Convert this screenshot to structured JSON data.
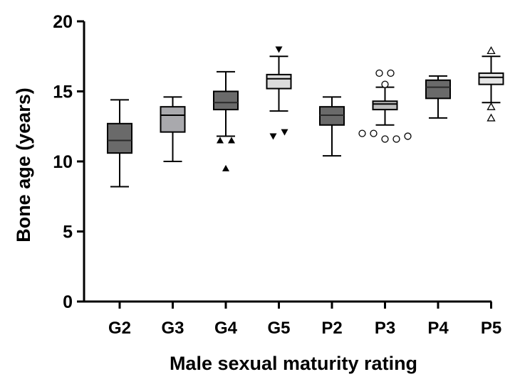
{
  "chart_data": {
    "type": "box",
    "title": "",
    "xlabel": "Male sexual maturity rating",
    "ylabel": "Bone age (years)",
    "ylim": [
      0,
      20
    ],
    "yticks": [
      0,
      5,
      10,
      15,
      20
    ],
    "groups": [
      {
        "label": "G2",
        "fill": "#6a6a6a",
        "min": 8.2,
        "q1": 10.6,
        "median": 11.5,
        "q3": 12.7,
        "max": 14.4,
        "outliers": [],
        "marker": "none"
      },
      {
        "label": "G3",
        "fill": "#a9a9ad",
        "min": 10.0,
        "q1": 12.1,
        "median": 13.3,
        "q3": 13.9,
        "max": 14.6,
        "outliers": [],
        "marker": "none"
      },
      {
        "label": "G4",
        "fill": "#6a6a6a",
        "min": 11.8,
        "q1": 13.7,
        "median": 14.2,
        "q3": 15.0,
        "max": 16.4,
        "outliers": [
          11.5,
          11.5,
          9.5
        ],
        "marker": "triangle-up-filled"
      },
      {
        "label": "G5",
        "fill": "#dcdcdc",
        "min": 13.6,
        "q1": 15.2,
        "median": 15.9,
        "q3": 16.2,
        "max": 17.5,
        "outliers": [
          18.0,
          11.8,
          12.1
        ],
        "marker": "triangle-down-filled"
      },
      {
        "label": "P2",
        "fill": "#6a6a6a",
        "min": 10.4,
        "q1": 12.6,
        "median": 13.3,
        "q3": 13.9,
        "max": 14.6,
        "outliers": [],
        "marker": "none"
      },
      {
        "label": "P3",
        "fill": "#bdbdbd",
        "min": 12.6,
        "q1": 13.7,
        "median": 14.1,
        "q3": 14.3,
        "max": 15.3,
        "outliers": [
          16.3,
          16.3,
          15.5,
          12.0,
          12.0,
          11.6,
          11.6,
          11.8
        ],
        "marker": "circle-open"
      },
      {
        "label": "P4",
        "fill": "#6a6a6a",
        "min": 13.1,
        "q1": 14.5,
        "median": 15.3,
        "q3": 15.8,
        "max": 16.1,
        "outliers": [],
        "marker": "none"
      },
      {
        "label": "P5",
        "fill": "#e6e6e6",
        "min": 14.2,
        "q1": 15.5,
        "median": 16.0,
        "q3": 16.3,
        "max": 17.5,
        "outliers": [
          17.9,
          13.9,
          13.1
        ],
        "marker": "triangle-up-open"
      }
    ]
  }
}
